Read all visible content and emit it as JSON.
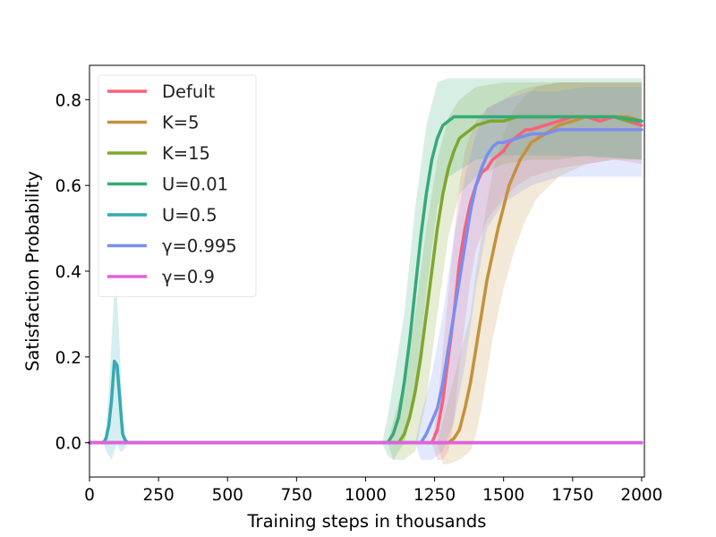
{
  "chart_data": {
    "type": "line",
    "xlabel": "Training steps in thousands",
    "ylabel": "Satisfaction Probability",
    "xlim": [
      0,
      2010
    ],
    "ylim": [
      -0.08,
      0.88
    ],
    "xticks": [
      0,
      250,
      500,
      750,
      1000,
      1250,
      1500,
      1750,
      2000
    ],
    "yticks": [
      0.0,
      0.2,
      0.4,
      0.6,
      0.8
    ],
    "xtick_labels": [
      "0",
      "250",
      "500",
      "750",
      "1000",
      "1250",
      "1500",
      "1750",
      "2000"
    ],
    "ytick_labels": [
      "0.0",
      "0.2",
      "0.4",
      "0.6",
      "0.8"
    ],
    "grid": false,
    "legend_position": "upper-left",
    "shaded_band": "mean ± spread",
    "series": [
      {
        "name": "Defult",
        "color": "#f5627a",
        "points": [
          [
            0,
            0
          ],
          [
            1000,
            0
          ],
          [
            1240,
            0
          ],
          [
            1260,
            0.03
          ],
          [
            1280,
            0.1
          ],
          [
            1300,
            0.2
          ],
          [
            1320,
            0.3
          ],
          [
            1340,
            0.42
          ],
          [
            1360,
            0.5
          ],
          [
            1380,
            0.56
          ],
          [
            1400,
            0.6
          ],
          [
            1420,
            0.63
          ],
          [
            1440,
            0.64
          ],
          [
            1460,
            0.66
          ],
          [
            1480,
            0.67
          ],
          [
            1500,
            0.68
          ],
          [
            1520,
            0.7
          ],
          [
            1540,
            0.71
          ],
          [
            1560,
            0.72
          ],
          [
            1580,
            0.73
          ],
          [
            1600,
            0.73
          ],
          [
            1650,
            0.74
          ],
          [
            1700,
            0.75
          ],
          [
            1750,
            0.76
          ],
          [
            1800,
            0.76
          ],
          [
            1850,
            0.75
          ],
          [
            1900,
            0.76
          ],
          [
            1950,
            0.75
          ],
          [
            2000,
            0.74
          ]
        ],
        "band": [
          [
            1240,
            0,
            0
          ],
          [
            1260,
            -0.04,
            0.08
          ],
          [
            1280,
            -0.04,
            0.22
          ],
          [
            1300,
            -0.02,
            0.35
          ],
          [
            1320,
            0.05,
            0.48
          ],
          [
            1340,
            0.18,
            0.6
          ],
          [
            1360,
            0.28,
            0.68
          ],
          [
            1380,
            0.38,
            0.72
          ],
          [
            1400,
            0.45,
            0.75
          ],
          [
            1440,
            0.52,
            0.78
          ],
          [
            1500,
            0.57,
            0.8
          ],
          [
            1550,
            0.6,
            0.82
          ],
          [
            1600,
            0.62,
            0.83
          ],
          [
            1700,
            0.64,
            0.84
          ],
          [
            1800,
            0.65,
            0.84
          ],
          [
            1900,
            0.66,
            0.84
          ],
          [
            2000,
            0.65,
            0.84
          ]
        ]
      },
      {
        "name": "K=5",
        "color": "#c4913a",
        "points": [
          [
            0,
            0
          ],
          [
            1000,
            0
          ],
          [
            1300,
            0
          ],
          [
            1320,
            0.01
          ],
          [
            1340,
            0.03
          ],
          [
            1360,
            0.08
          ],
          [
            1380,
            0.14
          ],
          [
            1400,
            0.22
          ],
          [
            1420,
            0.3
          ],
          [
            1440,
            0.38
          ],
          [
            1460,
            0.44
          ],
          [
            1480,
            0.5
          ],
          [
            1500,
            0.55
          ],
          [
            1520,
            0.6
          ],
          [
            1540,
            0.63
          ],
          [
            1560,
            0.66
          ],
          [
            1580,
            0.68
          ],
          [
            1600,
            0.7
          ],
          [
            1650,
            0.72
          ],
          [
            1700,
            0.74
          ],
          [
            1750,
            0.75
          ],
          [
            1800,
            0.76
          ],
          [
            1850,
            0.76
          ],
          [
            1900,
            0.76
          ],
          [
            1950,
            0.76
          ],
          [
            2000,
            0.75
          ]
        ],
        "band": [
          [
            1260,
            0,
            0
          ],
          [
            1280,
            -0.05,
            0.05
          ],
          [
            1300,
            -0.05,
            0.1
          ],
          [
            1340,
            -0.04,
            0.2
          ],
          [
            1380,
            -0.02,
            0.3
          ],
          [
            1400,
            0.02,
            0.4
          ],
          [
            1420,
            0.08,
            0.48
          ],
          [
            1440,
            0.16,
            0.56
          ],
          [
            1460,
            0.24,
            0.63
          ],
          [
            1500,
            0.36,
            0.72
          ],
          [
            1540,
            0.45,
            0.78
          ],
          [
            1580,
            0.52,
            0.81
          ],
          [
            1620,
            0.57,
            0.83
          ],
          [
            1700,
            0.62,
            0.84
          ],
          [
            1800,
            0.65,
            0.84
          ],
          [
            1900,
            0.66,
            0.84
          ],
          [
            2000,
            0.66,
            0.84
          ]
        ]
      },
      {
        "name": "K=15",
        "color": "#7ea72c",
        "points": [
          [
            0,
            0
          ],
          [
            1000,
            0
          ],
          [
            1120,
            0
          ],
          [
            1140,
            0.02
          ],
          [
            1160,
            0.06
          ],
          [
            1180,
            0.12
          ],
          [
            1200,
            0.2
          ],
          [
            1220,
            0.3
          ],
          [
            1240,
            0.4
          ],
          [
            1260,
            0.5
          ],
          [
            1280,
            0.58
          ],
          [
            1300,
            0.64
          ],
          [
            1320,
            0.68
          ],
          [
            1340,
            0.71
          ],
          [
            1360,
            0.72
          ],
          [
            1380,
            0.73
          ],
          [
            1400,
            0.74
          ],
          [
            1450,
            0.75
          ],
          [
            1500,
            0.75
          ],
          [
            1550,
            0.76
          ],
          [
            1600,
            0.76
          ],
          [
            1650,
            0.76
          ],
          [
            1700,
            0.76
          ],
          [
            1750,
            0.76
          ],
          [
            1800,
            0.76
          ],
          [
            1850,
            0.76
          ],
          [
            1900,
            0.76
          ],
          [
            1950,
            0.75
          ],
          [
            2000,
            0.75
          ]
        ],
        "band": [
          [
            1080,
            0,
            0
          ],
          [
            1100,
            -0.04,
            0.05
          ],
          [
            1140,
            -0.04,
            0.14
          ],
          [
            1180,
            -0.02,
            0.3
          ],
          [
            1220,
            0.1,
            0.5
          ],
          [
            1260,
            0.3,
            0.66
          ],
          [
            1300,
            0.48,
            0.76
          ],
          [
            1340,
            0.58,
            0.8
          ],
          [
            1400,
            0.62,
            0.83
          ],
          [
            1500,
            0.65,
            0.84
          ],
          [
            1600,
            0.66,
            0.84
          ],
          [
            1700,
            0.66,
            0.84
          ],
          [
            1800,
            0.67,
            0.84
          ],
          [
            2000,
            0.66,
            0.84
          ]
        ]
      },
      {
        "name": "U=0.01",
        "color": "#35aa78",
        "points": [
          [
            0,
            0
          ],
          [
            1000,
            0
          ],
          [
            1080,
            0
          ],
          [
            1100,
            0.02
          ],
          [
            1120,
            0.06
          ],
          [
            1140,
            0.14
          ],
          [
            1160,
            0.24
          ],
          [
            1180,
            0.36
          ],
          [
            1200,
            0.48
          ],
          [
            1220,
            0.58
          ],
          [
            1240,
            0.66
          ],
          [
            1260,
            0.71
          ],
          [
            1280,
            0.74
          ],
          [
            1300,
            0.75
          ],
          [
            1320,
            0.76
          ],
          [
            1340,
            0.76
          ],
          [
            1360,
            0.76
          ],
          [
            1400,
            0.76
          ],
          [
            1450,
            0.76
          ],
          [
            1500,
            0.76
          ],
          [
            1600,
            0.76
          ],
          [
            1700,
            0.76
          ],
          [
            1800,
            0.76
          ],
          [
            1900,
            0.76
          ],
          [
            2000,
            0.75
          ]
        ],
        "band": [
          [
            1060,
            0,
            0
          ],
          [
            1080,
            -0.03,
            0.06
          ],
          [
            1100,
            -0.04,
            0.14
          ],
          [
            1140,
            0.0,
            0.3
          ],
          [
            1180,
            0.1,
            0.55
          ],
          [
            1220,
            0.35,
            0.74
          ],
          [
            1260,
            0.55,
            0.84
          ],
          [
            1300,
            0.62,
            0.85
          ],
          [
            1400,
            0.66,
            0.85
          ],
          [
            1500,
            0.67,
            0.85
          ],
          [
            1700,
            0.67,
            0.85
          ],
          [
            2000,
            0.66,
            0.85
          ]
        ]
      },
      {
        "name": "U=0.5",
        "color": "#35a9b5",
        "points": [
          [
            0,
            0
          ],
          [
            50,
            0
          ],
          [
            60,
            0.01
          ],
          [
            70,
            0.04
          ],
          [
            80,
            0.1
          ],
          [
            90,
            0.19
          ],
          [
            100,
            0.18
          ],
          [
            110,
            0.1
          ],
          [
            120,
            0.02
          ],
          [
            130,
            0.005
          ],
          [
            140,
            0
          ],
          [
            2000,
            0
          ]
        ],
        "band": [
          [
            50,
            0,
            0
          ],
          [
            60,
            -0.02,
            0.04
          ],
          [
            70,
            -0.03,
            0.12
          ],
          [
            80,
            -0.04,
            0.24
          ],
          [
            90,
            -0.02,
            0.36
          ],
          [
            100,
            0.0,
            0.34
          ],
          [
            110,
            -0.02,
            0.22
          ],
          [
            120,
            -0.02,
            0.06
          ],
          [
            130,
            -0.01,
            0.02
          ],
          [
            140,
            0,
            0
          ]
        ]
      },
      {
        "name": "γ=0.995",
        "color": "#7a8ef0",
        "points": [
          [
            0,
            0
          ],
          [
            1000,
            0
          ],
          [
            1200,
            0
          ],
          [
            1220,
            0.02
          ],
          [
            1240,
            0.05
          ],
          [
            1260,
            0.08
          ],
          [
            1280,
            0.14
          ],
          [
            1300,
            0.22
          ],
          [
            1320,
            0.3
          ],
          [
            1340,
            0.38
          ],
          [
            1360,
            0.46
          ],
          [
            1380,
            0.54
          ],
          [
            1400,
            0.6
          ],
          [
            1420,
            0.64
          ],
          [
            1440,
            0.67
          ],
          [
            1460,
            0.69
          ],
          [
            1480,
            0.7
          ],
          [
            1500,
            0.7
          ],
          [
            1550,
            0.71
          ],
          [
            1600,
            0.72
          ],
          [
            1650,
            0.72
          ],
          [
            1700,
            0.73
          ],
          [
            1750,
            0.73
          ],
          [
            1800,
            0.73
          ],
          [
            1850,
            0.73
          ],
          [
            1900,
            0.73
          ],
          [
            1950,
            0.73
          ],
          [
            2000,
            0.73
          ]
        ],
        "band": [
          [
            1180,
            0,
            0
          ],
          [
            1200,
            -0.04,
            0.06
          ],
          [
            1240,
            -0.04,
            0.16
          ],
          [
            1280,
            -0.02,
            0.3
          ],
          [
            1320,
            0.05,
            0.48
          ],
          [
            1360,
            0.18,
            0.62
          ],
          [
            1400,
            0.36,
            0.72
          ],
          [
            1440,
            0.5,
            0.78
          ],
          [
            1500,
            0.56,
            0.8
          ],
          [
            1600,
            0.6,
            0.82
          ],
          [
            1700,
            0.62,
            0.82
          ],
          [
            1800,
            0.62,
            0.83
          ],
          [
            1900,
            0.62,
            0.83
          ],
          [
            2000,
            0.62,
            0.83
          ]
        ]
      },
      {
        "name": "γ=0.9",
        "color": "#e35fdf",
        "points": [
          [
            0,
            0
          ],
          [
            2000,
            0
          ]
        ],
        "band": []
      }
    ]
  }
}
